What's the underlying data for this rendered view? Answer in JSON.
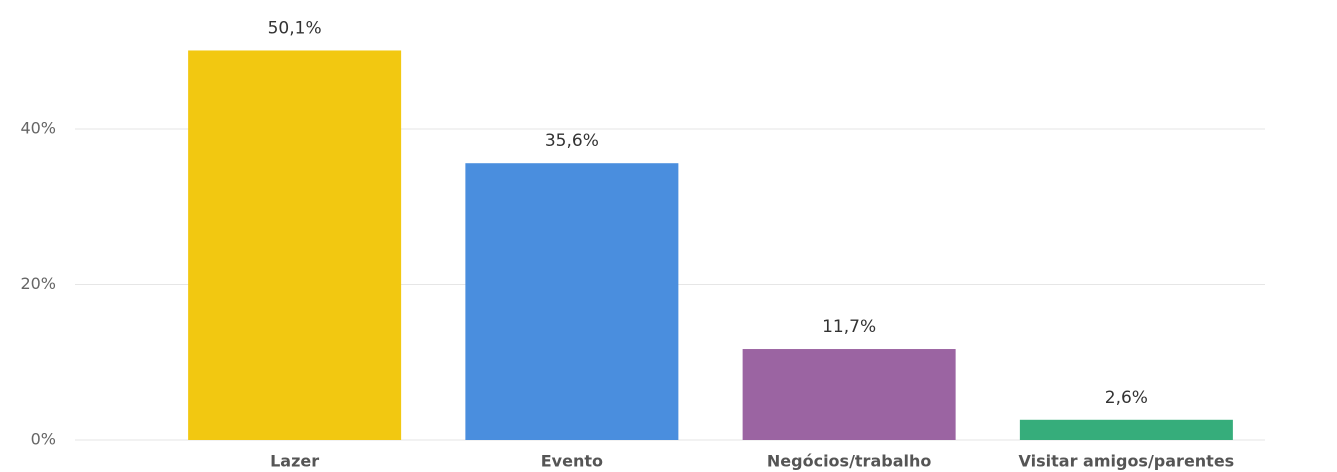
{
  "chart_data": {
    "type": "bar",
    "categories": [
      "Lazer",
      "Evento",
      "Negócios/trabalho",
      "Visitar amigos/parentes"
    ],
    "values": [
      50.1,
      35.6,
      11.7,
      2.6
    ],
    "value_labels": [
      "50,1%",
      "35,6%",
      "11,7%",
      "2,6%"
    ],
    "colors": [
      "#f2c811",
      "#4a8ede",
      "#9b64a2",
      "#36ad7b"
    ],
    "ylim": [
      0,
      55
    ],
    "yticks": [
      {
        "value": 0,
        "label": "0%"
      },
      {
        "value": 20,
        "label": "20%"
      },
      {
        "value": 40,
        "label": "40%"
      }
    ],
    "grid": true
  }
}
